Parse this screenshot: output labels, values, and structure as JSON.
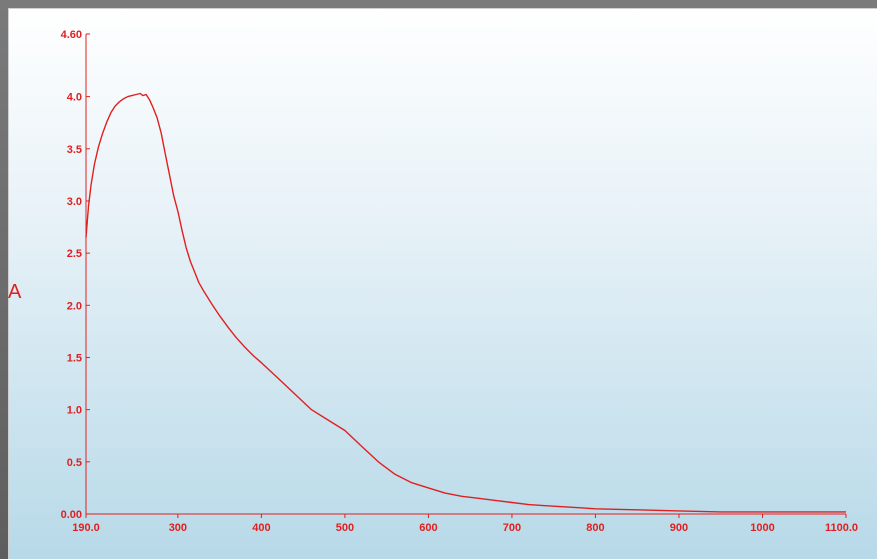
{
  "chart_data": {
    "type": "line",
    "title": "",
    "xlabel": "",
    "ylabel": "A",
    "xlim": [
      190,
      1100
    ],
    "ylim": [
      0,
      4.6
    ],
    "grid": false,
    "colors": {
      "line": "#e02020",
      "axis": "#e02020"
    },
    "x_ticks": [
      190,
      300,
      400,
      500,
      600,
      700,
      800,
      900,
      1000,
      1100
    ],
    "x_tick_labels": [
      "190.0",
      "300",
      "400",
      "500",
      "600",
      "700",
      "800",
      "900",
      "1000",
      "1100.0"
    ],
    "y_ticks": [
      0,
      0.5,
      1.0,
      1.5,
      2.0,
      2.5,
      3.0,
      3.5,
      4.0,
      4.6
    ],
    "y_tick_labels": [
      "0.00",
      "0.5",
      "1.0",
      "1.5",
      "2.0",
      "2.5",
      "3.0",
      "3.5",
      "4.0",
      "4.60"
    ],
    "series": [
      {
        "x": [
          190,
          193,
          196,
          200,
          205,
          210,
          215,
          220,
          225,
          230,
          235,
          240,
          245,
          250,
          255,
          258,
          262,
          266,
          270,
          275,
          280,
          285,
          290,
          295,
          300,
          305,
          310,
          315,
          320,
          325,
          330,
          340,
          350,
          360,
          370,
          380,
          390,
          400,
          420,
          440,
          460,
          480,
          500,
          520,
          540,
          560,
          580,
          600,
          620,
          640,
          660,
          680,
          700,
          720,
          740,
          760,
          780,
          800,
          850,
          900,
          950,
          1000,
          1050,
          1100
        ],
        "y": [
          2.65,
          2.95,
          3.15,
          3.35,
          3.52,
          3.65,
          3.76,
          3.85,
          3.91,
          3.95,
          3.98,
          4.0,
          4.01,
          4.02,
          4.03,
          4.01,
          4.02,
          3.97,
          3.9,
          3.8,
          3.65,
          3.45,
          3.25,
          3.05,
          2.9,
          2.72,
          2.55,
          2.42,
          2.32,
          2.22,
          2.15,
          2.02,
          1.9,
          1.79,
          1.69,
          1.6,
          1.52,
          1.45,
          1.3,
          1.15,
          1.0,
          0.9,
          0.8,
          0.65,
          0.5,
          0.38,
          0.3,
          0.25,
          0.2,
          0.17,
          0.15,
          0.13,
          0.11,
          0.09,
          0.08,
          0.07,
          0.06,
          0.05,
          0.04,
          0.03,
          0.02,
          0.02,
          0.02,
          0.02
        ]
      }
    ]
  }
}
